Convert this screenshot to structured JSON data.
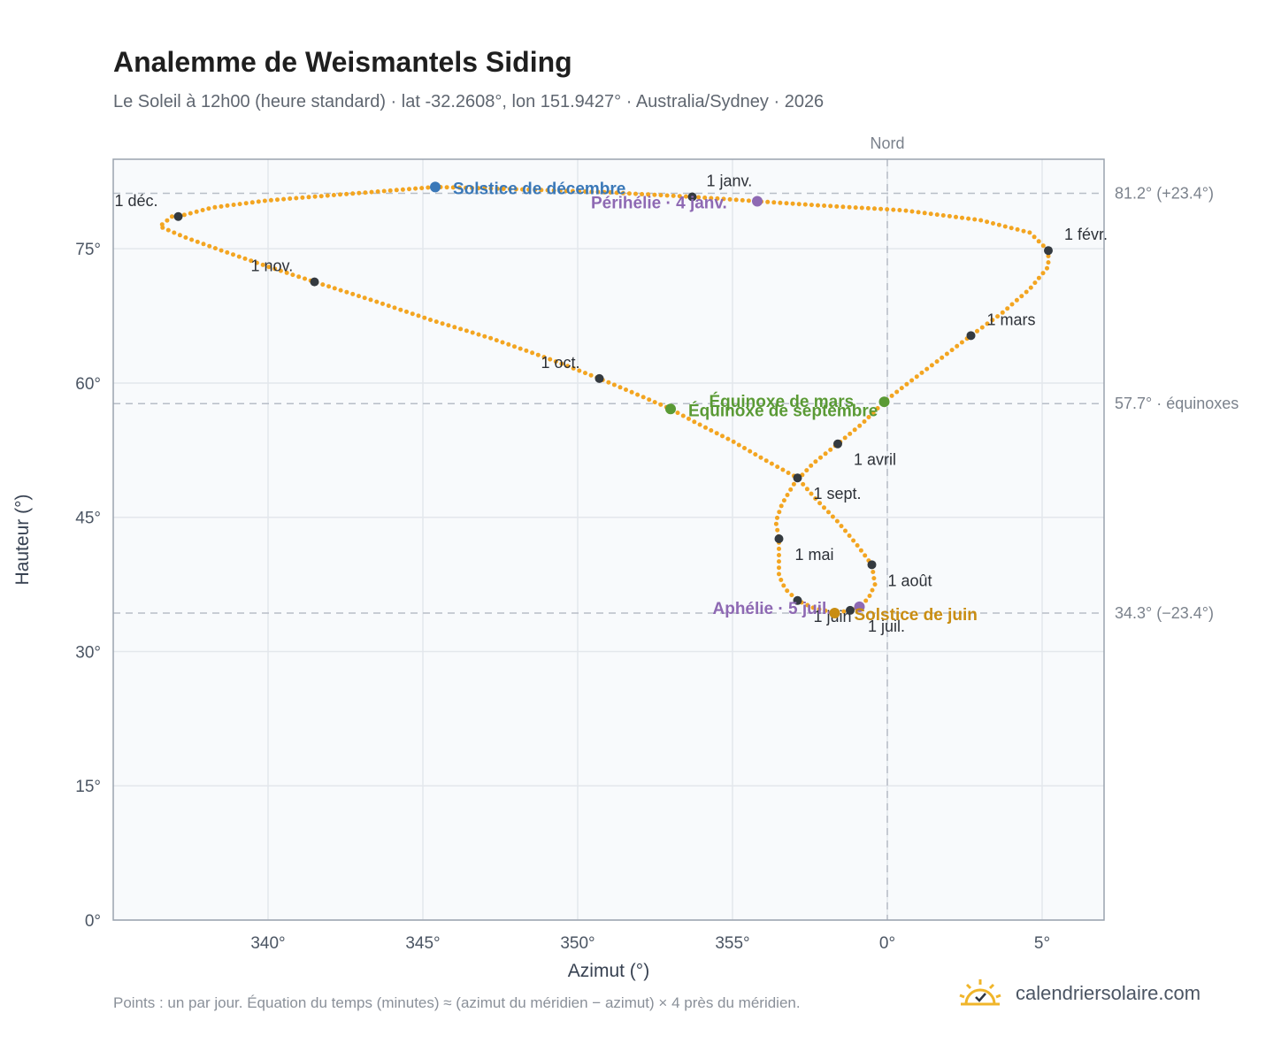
{
  "header": {
    "title": "Analemme de Weismantels Siding",
    "subtitle": "Le Soleil à 12h00 (heure standard) · lat -32.2608°, lon 151.9427° · Australia/Sydney · 2026"
  },
  "footer": {
    "note": "Points : un par jour. Équation du temps (minutes) ≈ (azimut du méridien − azimut) × 4 près du méridien.",
    "brand": "calendriersolaire.com",
    "brand_icon": "sun-check-icon"
  },
  "colors": {
    "analemma": "#f3a521",
    "month_marker": "#343a40",
    "december_solstice": "#3a78b8",
    "june_solstice": "#c98d12",
    "equinox": "#5a9a35",
    "apsis": "#8e69b3",
    "reference_line": "#b7bec7",
    "plot_background": "#f8fafc"
  },
  "chart_data": {
    "type": "scatter",
    "xlabel": "Azimut (°)",
    "ylabel": "Hauteur (°)",
    "x_axis_note": "Azimut relatif au nord : -25 = 335°, 0 = 0°",
    "xlim": [
      -25,
      7
    ],
    "ylim": [
      0,
      85
    ],
    "x_ticks": [
      {
        "value": -20,
        "label": "340°"
      },
      {
        "value": -15,
        "label": "345°"
      },
      {
        "value": -10,
        "label": "350°"
      },
      {
        "value": -5,
        "label": "355°"
      },
      {
        "value": 0,
        "label": "0°"
      },
      {
        "value": 5,
        "label": "5°"
      }
    ],
    "y_ticks": [
      {
        "value": 0,
        "label": "0°"
      },
      {
        "value": 15,
        "label": "15°"
      },
      {
        "value": 30,
        "label": "30°"
      },
      {
        "value": 45,
        "label": "45°"
      },
      {
        "value": 60,
        "label": "60°"
      },
      {
        "value": 75,
        "label": "75°"
      }
    ],
    "grid": true,
    "meridian": {
      "value": 0,
      "label": "Nord"
    },
    "reference_lines": [
      {
        "value": 81.2,
        "label": "81.2° (+23.4°)"
      },
      {
        "value": 57.7,
        "label": "57.7° · équinoxes"
      },
      {
        "value": 34.3,
        "label": "34.3° (−23.4°)"
      }
    ],
    "months": [
      {
        "label": "1 janv.",
        "x": -6.3,
        "y": 80.8,
        "dx": 16,
        "dy": -12
      },
      {
        "label": "1 févr.",
        "x": 5.2,
        "y": 74.8,
        "dx": 18,
        "dy": -12
      },
      {
        "label": "1 mars",
        "x": 2.7,
        "y": 65.3,
        "dx": 18,
        "dy": -12
      },
      {
        "label": "1 avril",
        "x": -1.6,
        "y": 53.2,
        "dx": 18,
        "dy": 24
      },
      {
        "label": "1 mai",
        "x": -3.5,
        "y": 42.6,
        "dx": 18,
        "dy": 24
      },
      {
        "label": "1 juin",
        "x": -2.9,
        "y": 35.7,
        "dx": 18,
        "dy": 24
      },
      {
        "label": "1 juil.",
        "x": -1.2,
        "y": 34.6,
        "dx": 20,
        "dy": 24
      },
      {
        "label": "1 août",
        "x": -0.5,
        "y": 39.7,
        "dx": 18,
        "dy": 24
      },
      {
        "label": "1 sept.",
        "x": -2.9,
        "y": 49.4,
        "dx": 18,
        "dy": 24
      },
      {
        "label": "1 oct.",
        "x": -9.3,
        "y": 60.5,
        "dx": -66,
        "dy": -12
      },
      {
        "label": "1 nov.",
        "x": -18.5,
        "y": 71.3,
        "dx": -72,
        "dy": -12
      },
      {
        "label": "1 déc.",
        "x": -22.9,
        "y": 78.6,
        "dx": -72,
        "dy": -12
      }
    ],
    "events": [
      {
        "label": "Solstice de décembre",
        "x": -14.6,
        "y": 81.9,
        "color": "#3a78b8",
        "dx": 20,
        "dy": 8
      },
      {
        "label": "Périhélie · 4 janv.",
        "x": -4.2,
        "y": 80.3,
        "color": "#8e69b3",
        "dx": -188,
        "dy": 8
      },
      {
        "label": "Équinoxe de mars",
        "x": -0.1,
        "y": 57.9,
        "color": "#5a9a35",
        "dx": -198,
        "dy": 6
      },
      {
        "label": "Équinoxe de septembre",
        "x": -7.0,
        "y": 57.1,
        "color": "#5a9a35",
        "dx": 20,
        "dy": 8
      },
      {
        "label": "Aphélie · 5 juil.",
        "x": -0.9,
        "y": 35.0,
        "color": "#8e69b3",
        "dx": -166,
        "dy": 8
      },
      {
        "label": "Solstice de juin",
        "x": -1.7,
        "y": 34.3,
        "color": "#c98d12",
        "dx": 22,
        "dy": 8
      }
    ],
    "series": [
      {
        "marker": "dot",
        "note": "un point par jour (courbe échantillonnée aux dates clés)",
        "points": [
          [
            -6.3,
            80.8
          ],
          [
            -4.2,
            80.3
          ],
          [
            -2.0,
            79.8
          ],
          [
            0.5,
            79.3
          ],
          [
            3.0,
            78.2
          ],
          [
            4.6,
            76.8
          ],
          [
            5.2,
            74.8
          ],
          [
            5.2,
            73.0
          ],
          [
            4.6,
            70.5
          ],
          [
            3.7,
            67.8
          ],
          [
            2.7,
            65.3
          ],
          [
            1.6,
            62.4
          ],
          [
            0.6,
            59.8
          ],
          [
            -0.1,
            57.9
          ],
          [
            -0.8,
            55.5
          ],
          [
            -1.6,
            53.2
          ],
          [
            -2.4,
            51.0
          ],
          [
            -3.0,
            48.8
          ],
          [
            -3.4,
            46.5
          ],
          [
            -3.6,
            44.5
          ],
          [
            -3.5,
            42.6
          ],
          [
            -3.5,
            40.5
          ],
          [
            -3.5,
            38.5
          ],
          [
            -3.3,
            37.0
          ],
          [
            -2.9,
            35.7
          ],
          [
            -2.4,
            34.9
          ],
          [
            -1.7,
            34.3
          ],
          [
            -1.2,
            34.6
          ],
          [
            -0.9,
            35.0
          ],
          [
            -0.6,
            36.0
          ],
          [
            -0.4,
            37.5
          ],
          [
            -0.5,
            39.7
          ],
          [
            -1.0,
            42.0
          ],
          [
            -1.6,
            44.5
          ],
          [
            -2.3,
            47.0
          ],
          [
            -2.9,
            49.4
          ],
          [
            -4.0,
            51.5
          ],
          [
            -5.0,
            53.5
          ],
          [
            -6.2,
            55.6
          ],
          [
            -7.0,
            57.1
          ],
          [
            -8.2,
            58.9
          ],
          [
            -9.3,
            60.5
          ],
          [
            -11.0,
            62.8
          ],
          [
            -12.8,
            65.0
          ],
          [
            -14.7,
            67.0
          ],
          [
            -16.6,
            69.2
          ],
          [
            -18.5,
            71.3
          ],
          [
            -20.0,
            73.0
          ],
          [
            -21.5,
            74.8
          ],
          [
            -22.7,
            76.3
          ],
          [
            -23.5,
            77.5
          ],
          [
            -23.1,
            78.6
          ],
          [
            -22.9,
            78.6
          ],
          [
            -21.8,
            79.6
          ],
          [
            -20.0,
            80.4
          ],
          [
            -17.5,
            81.1
          ],
          [
            -14.6,
            81.9
          ],
          [
            -11.5,
            81.6
          ],
          [
            -9.0,
            81.3
          ],
          [
            -6.3,
            80.8
          ]
        ]
      }
    ]
  }
}
